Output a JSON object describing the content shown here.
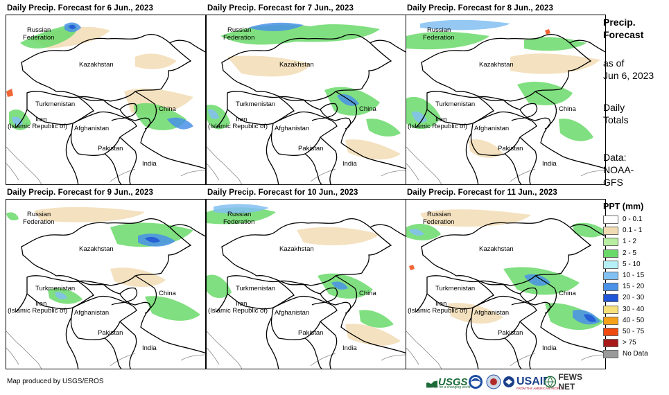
{
  "panels": [
    {
      "title": "Daily Precip. Forecast for 6 Jun., 2023"
    },
    {
      "title": "Daily Precip. Forecast for 7 Jun., 2023"
    },
    {
      "title": "Daily Precip. Forecast for 8 Jun., 2023"
    },
    {
      "title": "Daily Precip. Forecast for 9 Jun., 2023"
    },
    {
      "title": "Daily Precip. Forecast for 10 Jun., 2023"
    },
    {
      "title": "Daily Precip. Forecast for 11 Jun., 2023"
    }
  ],
  "map_labels": {
    "russia_line1": "Russian",
    "russia_line2": "Federation",
    "kazakhstan": "Kazakhstan",
    "turkmenistan": "Turkmenistan",
    "china": "China",
    "iran_line1": "Iran",
    "iran_line2": "(Islamic Republic of)",
    "afghanistan": "Afghanistan",
    "pakistan": "Pakistan",
    "india": "India"
  },
  "side_info": {
    "heading_line1": "Precip.",
    "heading_line2": "Forecast",
    "asof_line1": "as of",
    "asof_line2": "Jun 6, 2023",
    "totals_line1": "Daily",
    "totals_line2": "Totals",
    "data_line1": "Data:",
    "data_line2": "NOAA-",
    "data_line3": "GFS"
  },
  "legend": {
    "title": "PPT (mm)",
    "items": [
      {
        "label": "0 - 0.1",
        "color": "#ffffff"
      },
      {
        "label": "0.1 - 1",
        "color": "#f2dcb4"
      },
      {
        "label": "1 - 2",
        "color": "#b7eea0"
      },
      {
        "label": "2 - 5",
        "color": "#6ad96a"
      },
      {
        "label": "5 - 10",
        "color": "#b4f0f5"
      },
      {
        "label": "10 - 15",
        "color": "#82c0f2"
      },
      {
        "label": "15 - 20",
        "color": "#4a92e8"
      },
      {
        "label": "20 - 30",
        "color": "#1f55d6"
      },
      {
        "label": "30 - 40",
        "color": "#f7e07a"
      },
      {
        "label": "40 - 50",
        "color": "#f5a21a"
      },
      {
        "label": "50 - 75",
        "color": "#f04a10"
      },
      {
        "label": "> 75",
        "color": "#a81a1a"
      },
      {
        "label": "No Data",
        "color": "#9a9a9a"
      }
    ]
  },
  "footer": {
    "credit": "Map produced by USGS/EROS",
    "logos": {
      "usgs": "USGS",
      "usgs_tagline": "science for a changing world",
      "usaid": "USAID",
      "usaid_tagline": "FROM THE AMERICAN PEOPLE",
      "fewsnet": "FEWS NET"
    }
  },
  "colors": {
    "border": "#000000",
    "coast": "#888888"
  }
}
